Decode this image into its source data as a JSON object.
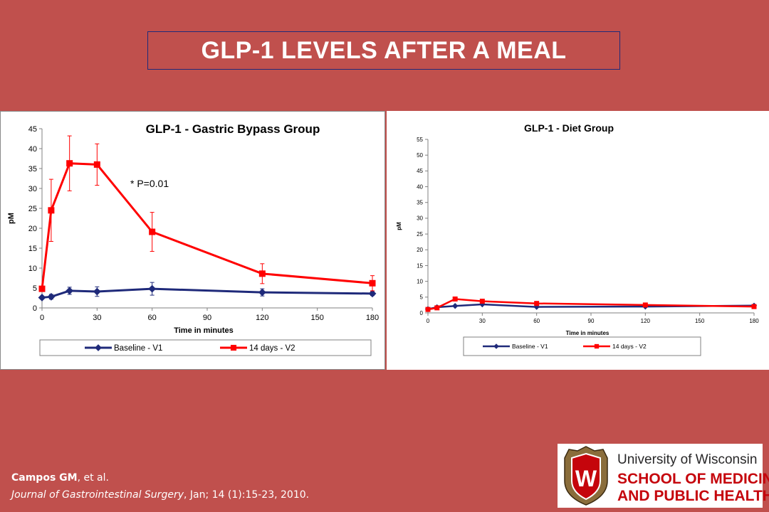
{
  "slide": {
    "title": "GLP-1 LEVELS AFTER A MEAL"
  },
  "citation": {
    "author": "Campos GM",
    "author_suffix": ", et al.",
    "journal": "Journal of Gastrointestinal Surgery",
    "details": ", Jan; 14 (1):15-23, 2010."
  },
  "logo": {
    "line1": "University of Wisconsin",
    "line2": "SCHOOL OF MEDICINE",
    "line3": "AND PUBLIC HEALTH",
    "crest_letter": "W"
  },
  "colors": {
    "background": "#c0504d",
    "series_baseline": "#1f2a7a",
    "series_14days": "#ff0000",
    "logo_red": "#c5050c"
  },
  "chart_data": [
    {
      "type": "line",
      "title": "GLP-1 - Gastric Bypass Group",
      "xlabel": "Time in minutes",
      "ylabel": "pM",
      "xlim": [
        0,
        180
      ],
      "ylim": [
        0,
        45
      ],
      "xticks": [
        0,
        30,
        60,
        90,
        120,
        150,
        180
      ],
      "yticks": [
        0,
        5,
        10,
        15,
        20,
        25,
        30,
        35,
        40,
        45
      ],
      "annotation": "* P=0.01",
      "legend_position": "bottom",
      "grid": false,
      "series": [
        {
          "name": "Baseline - V1",
          "marker": "diamond",
          "x": [
            0,
            5,
            15,
            30,
            60,
            120,
            180
          ],
          "y": [
            2.6,
            2.8,
            4.3,
            4.1,
            4.8,
            3.9,
            3.6
          ],
          "err": [
            0,
            0.6,
            0.9,
            1.2,
            1.6,
            0.9,
            0.5
          ]
        },
        {
          "name": "14 days - V2",
          "marker": "square",
          "x": [
            0,
            5,
            15,
            30,
            60,
            120,
            180
          ],
          "y": [
            4.8,
            24.5,
            36.3,
            36.0,
            19.1,
            8.6,
            6.2
          ],
          "err": [
            0,
            7.8,
            6.9,
            5.2,
            4.9,
            2.5,
            1.9
          ]
        }
      ]
    },
    {
      "type": "line",
      "title": "GLP-1 - Diet Group",
      "xlabel": "Time in minutes",
      "ylabel": "pM",
      "xlim": [
        0,
        180
      ],
      "ylim": [
        0,
        55
      ],
      "xticks": [
        0,
        30,
        60,
        90,
        120,
        150,
        180
      ],
      "yticks": [
        0,
        5,
        10,
        15,
        20,
        25,
        30,
        35,
        40,
        45,
        50,
        55
      ],
      "legend_position": "bottom",
      "grid": false,
      "series": [
        {
          "name": "Baseline - V1",
          "marker": "diamond",
          "x": [
            0,
            5,
            15,
            30,
            60,
            120,
            180
          ],
          "y": [
            1.2,
            1.8,
            2.2,
            2.7,
            1.9,
            2.0,
            2.3
          ]
        },
        {
          "name": "14 days - V2",
          "marker": "square",
          "x": [
            0,
            5,
            15,
            30,
            60,
            120,
            180
          ],
          "y": [
            1.1,
            1.6,
            4.4,
            3.7,
            3.0,
            2.5,
            2.0
          ]
        }
      ]
    }
  ]
}
